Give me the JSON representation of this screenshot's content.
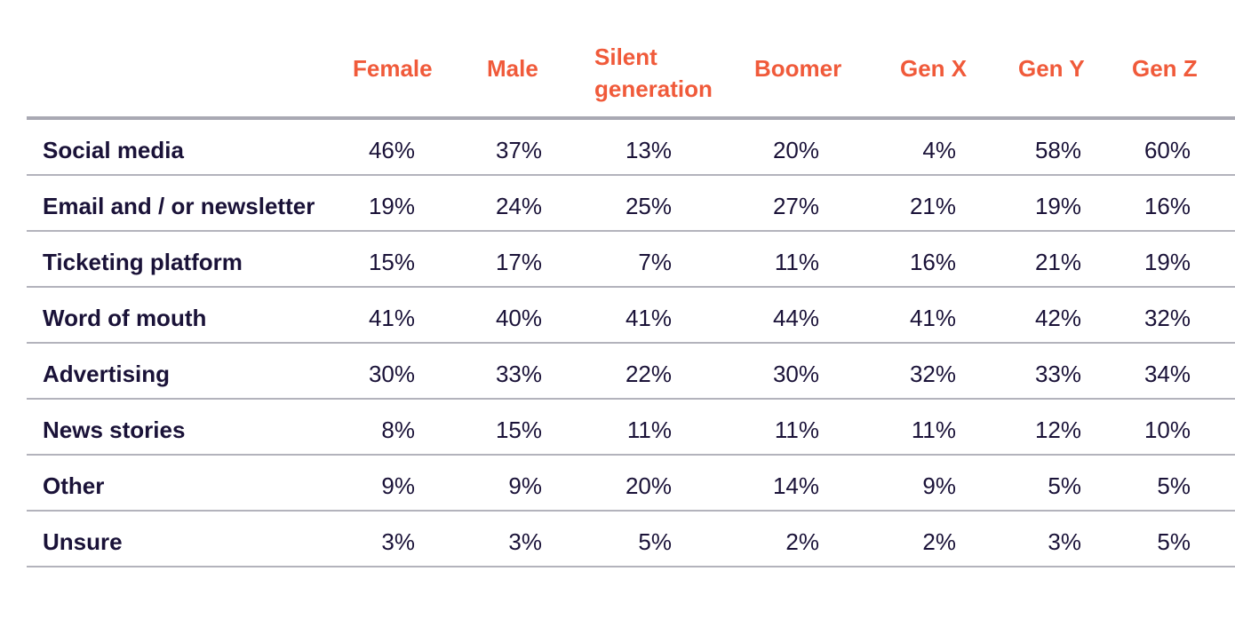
{
  "chart_data": {
    "type": "table",
    "columns": [
      "Female",
      "Male",
      "Silent generation",
      "Boomer",
      "Gen X",
      "Gen Y",
      "Gen Z"
    ],
    "header_lines": [
      [
        "Female"
      ],
      [
        "Male"
      ],
      [
        "Silent",
        "generation"
      ],
      [
        "Boomer"
      ],
      [
        "Gen X"
      ],
      [
        "Gen Y"
      ],
      [
        "Gen Z"
      ]
    ],
    "rows": [
      {
        "label": "Social media",
        "values": [
          "46%",
          "37%",
          "13%",
          "20%",
          "4%",
          "58%",
          "60%"
        ]
      },
      {
        "label": "Email and / or newsletter",
        "values": [
          "19%",
          "24%",
          "25%",
          "27%",
          "21%",
          "19%",
          "16%"
        ]
      },
      {
        "label": "Ticketing platform",
        "values": [
          "15%",
          "17%",
          "7%",
          "11%",
          "16%",
          "21%",
          "19%"
        ]
      },
      {
        "label": "Word of mouth",
        "values": [
          "41%",
          "40%",
          "41%",
          "44%",
          "41%",
          "42%",
          "32%"
        ]
      },
      {
        "label": "Advertising",
        "values": [
          "30%",
          "33%",
          "22%",
          "30%",
          "32%",
          "33%",
          "34%"
        ]
      },
      {
        "label": "News stories",
        "values": [
          "8%",
          "15%",
          "11%",
          "11%",
          "11%",
          "12%",
          "10%"
        ]
      },
      {
        "label": "Other",
        "values": [
          "9%",
          "9%",
          "20%",
          "14%",
          "9%",
          "5%",
          "5%"
        ]
      },
      {
        "label": "Unsure",
        "values": [
          "3%",
          "3%",
          "5%",
          "2%",
          "2%",
          "3%",
          "5%"
        ]
      }
    ],
    "colors": {
      "header_text": "#f05a3a",
      "body_text": "#1a1238",
      "rule": "#b3b3bc"
    }
  }
}
